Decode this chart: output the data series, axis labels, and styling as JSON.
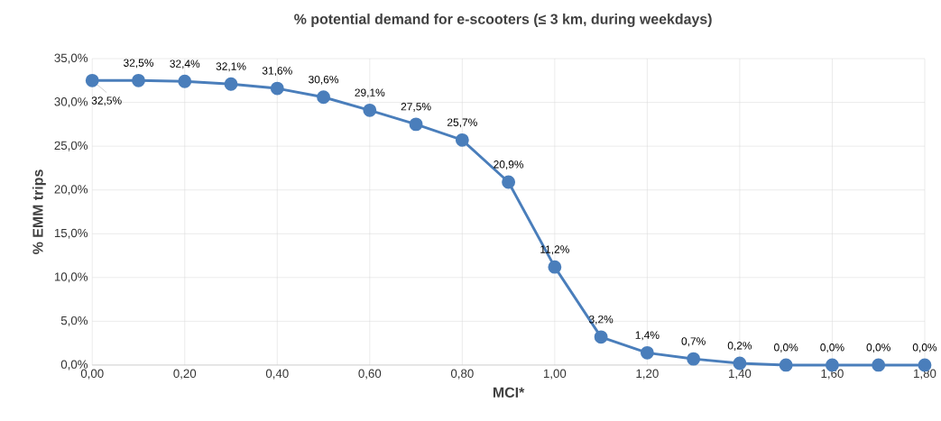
{
  "chart_data": {
    "type": "line",
    "title": "% potential demand for e-scooters (≤ 3 km, during weekdays)",
    "xlabel": "MCI*",
    "ylabel": "% EMM trips",
    "x": [
      0,
      0.1,
      0.2,
      0.3,
      0.4,
      0.5,
      0.6,
      0.7,
      0.8,
      0.9,
      1.0,
      1.1,
      1.2,
      1.3,
      1.4,
      1.5,
      1.6,
      1.7,
      1.8
    ],
    "values": [
      32.5,
      32.5,
      32.4,
      32.1,
      31.6,
      30.6,
      29.1,
      27.5,
      25.7,
      20.9,
      11.2,
      3.2,
      1.4,
      0.7,
      0.2,
      0.0,
      0.0,
      0.0,
      0.0
    ],
    "value_labels": [
      "32,5%",
      "32,5%",
      "32,4%",
      "32,1%",
      "31,6%",
      "30,6%",
      "29,1%",
      "27,5%",
      "25,7%",
      "20,9%",
      "11,2%",
      "3,2%",
      "1,4%",
      "0,7%",
      "0,2%",
      "0,0%",
      "0,0%",
      "0,0%",
      "0,0%"
    ],
    "color": "#4a7ebb",
    "marker": "circle",
    "line_style": "solid",
    "grid": true,
    "xlim": [
      0,
      1.8
    ],
    "ylim": [
      0,
      35
    ],
    "xticks": [
      {
        "value": 0,
        "label": "0,00"
      },
      {
        "value": 0.2,
        "label": "0,20"
      },
      {
        "value": 0.4,
        "label": "0,40"
      },
      {
        "value": 0.6,
        "label": "0,60"
      },
      {
        "value": 0.8,
        "label": "0,80"
      },
      {
        "value": 1.0,
        "label": "1,00"
      },
      {
        "value": 1.2,
        "label": "1,20"
      },
      {
        "value": 1.4,
        "label": "1,40"
      },
      {
        "value": 1.6,
        "label": "1,60"
      },
      {
        "value": 1.8,
        "label": "1,80"
      }
    ],
    "yticks": [
      {
        "value": 0,
        "label": "0,0%"
      },
      {
        "value": 5,
        "label": "5,0%"
      },
      {
        "value": 10,
        "label": "10,0%"
      },
      {
        "value": 15,
        "label": "15,0%"
      },
      {
        "value": 20,
        "label": "20,0%"
      },
      {
        "value": 25,
        "label": "25,0%"
      },
      {
        "value": 30,
        "label": "30,0%"
      },
      {
        "value": 35,
        "label": "35,0%"
      }
    ]
  }
}
